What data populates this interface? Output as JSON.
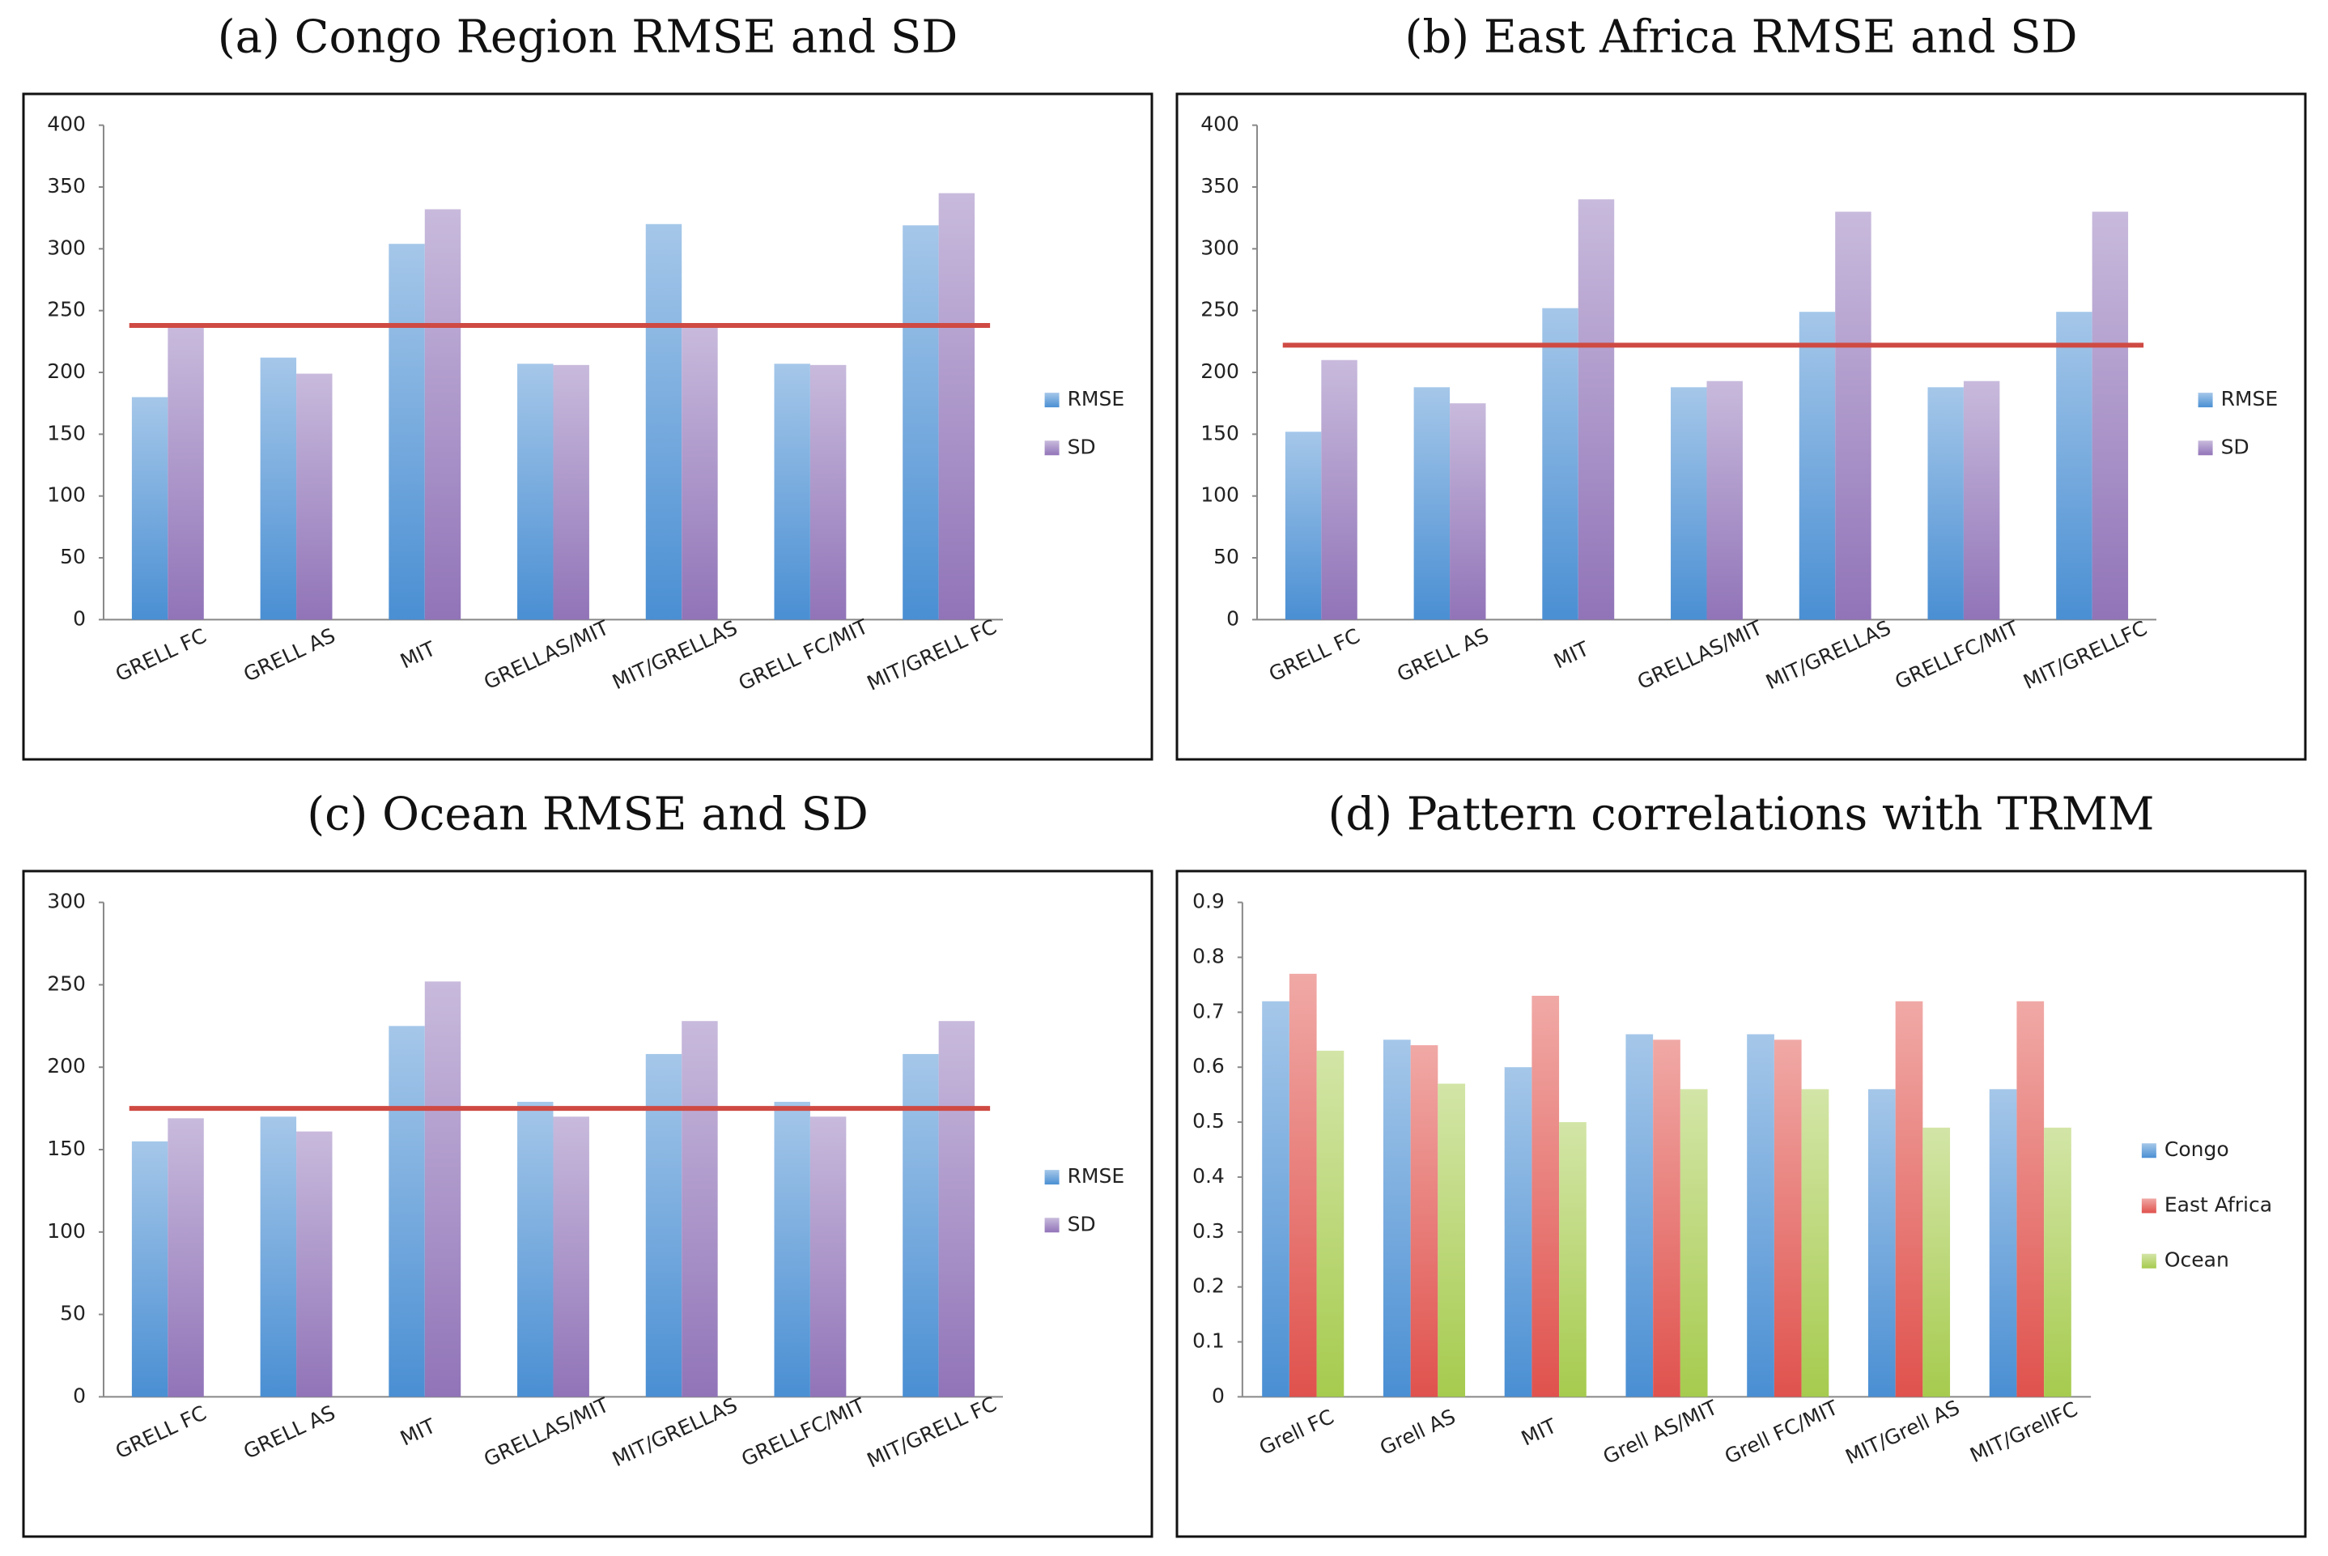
{
  "chart_data": [
    {
      "type": "bar",
      "title": "(a) Congo Region RMSE and SD",
      "categories": [
        "GRELL FC",
        "GRELL AS",
        "MIT",
        "GRELLAS/MIT",
        "MIT/GRELLAS",
        "GRELL FC/MIT",
        "MIT/GRELL FC"
      ],
      "series": [
        {
          "name": "RMSE",
          "color": "#4a8fd3",
          "values": [
            180,
            212,
            304,
            207,
            320,
            207,
            319
          ]
        },
        {
          "name": "SD",
          "color": "#9174b8",
          "values": [
            236,
            199,
            332,
            206,
            238,
            206,
            345
          ]
        }
      ],
      "ylim": [
        0,
        400
      ],
      "yticks": [
        0,
        50,
        100,
        150,
        200,
        250,
        300,
        350,
        400
      ],
      "reference_line": 238,
      "reference_color": "#cf4a43"
    },
    {
      "type": "bar",
      "title": "(b) East Africa RMSE and SD",
      "categories": [
        "GRELL FC",
        "GRELL AS",
        "MIT",
        "GRELLAS/MIT",
        "MIT/GRELLAS",
        "GRELLFC/MIT",
        "MIT/GRELLFC"
      ],
      "series": [
        {
          "name": "RMSE",
          "color": "#4a8fd3",
          "values": [
            152,
            188,
            252,
            188,
            249,
            188,
            249
          ]
        },
        {
          "name": "SD",
          "color": "#9174b8",
          "values": [
            210,
            175,
            340,
            193,
            330,
            193,
            330
          ]
        }
      ],
      "ylim": [
        0,
        400
      ],
      "yticks": [
        0,
        50,
        100,
        150,
        200,
        250,
        300,
        350,
        400
      ],
      "reference_line": 222,
      "reference_color": "#cf4a43"
    },
    {
      "type": "bar",
      "title": "(c) Ocean RMSE and SD",
      "categories": [
        "GRELL FC",
        "GRELL AS",
        "MIT",
        "GRELLAS/MIT",
        "MIT/GRELLAS",
        "GRELLFC/MIT",
        "MIT/GRELL FC"
      ],
      "series": [
        {
          "name": "RMSE",
          "color": "#4a8fd3",
          "values": [
            155,
            170,
            225,
            179,
            208,
            179,
            208
          ]
        },
        {
          "name": "SD",
          "color": "#9174b8",
          "values": [
            169,
            161,
            252,
            170,
            228,
            170,
            228
          ]
        }
      ],
      "ylim": [
        0,
        300
      ],
      "yticks": [
        0,
        50,
        100,
        150,
        200,
        250,
        300
      ],
      "reference_line": 175,
      "reference_color": "#cf4a43"
    },
    {
      "type": "bar",
      "title": "(d) Pattern correlations with TRMM",
      "categories": [
        "Grell FC",
        "Grell AS",
        "MIT",
        "Grell AS/MIT",
        "Grell FC/MIT",
        "MIT/Grell AS",
        "MIT/GrellFC"
      ],
      "series": [
        {
          "name": "Congo",
          "color": "#4a8fd3",
          "values": [
            0.72,
            0.65,
            0.6,
            0.66,
            0.66,
            0.56,
            0.56
          ]
        },
        {
          "name": "East Africa",
          "color": "#e0524d",
          "values": [
            0.77,
            0.64,
            0.73,
            0.65,
            0.65,
            0.72,
            0.72
          ]
        },
        {
          "name": "Ocean",
          "color": "#a6cb4e",
          "values": [
            0.63,
            0.57,
            0.5,
            0.56,
            0.56,
            0.49,
            0.49
          ]
        }
      ],
      "ylim": [
        0,
        0.9
      ],
      "yticks": [
        0,
        0.1,
        0.2,
        0.3,
        0.4,
        0.5,
        0.6,
        0.7,
        0.8,
        0.9
      ]
    }
  ]
}
